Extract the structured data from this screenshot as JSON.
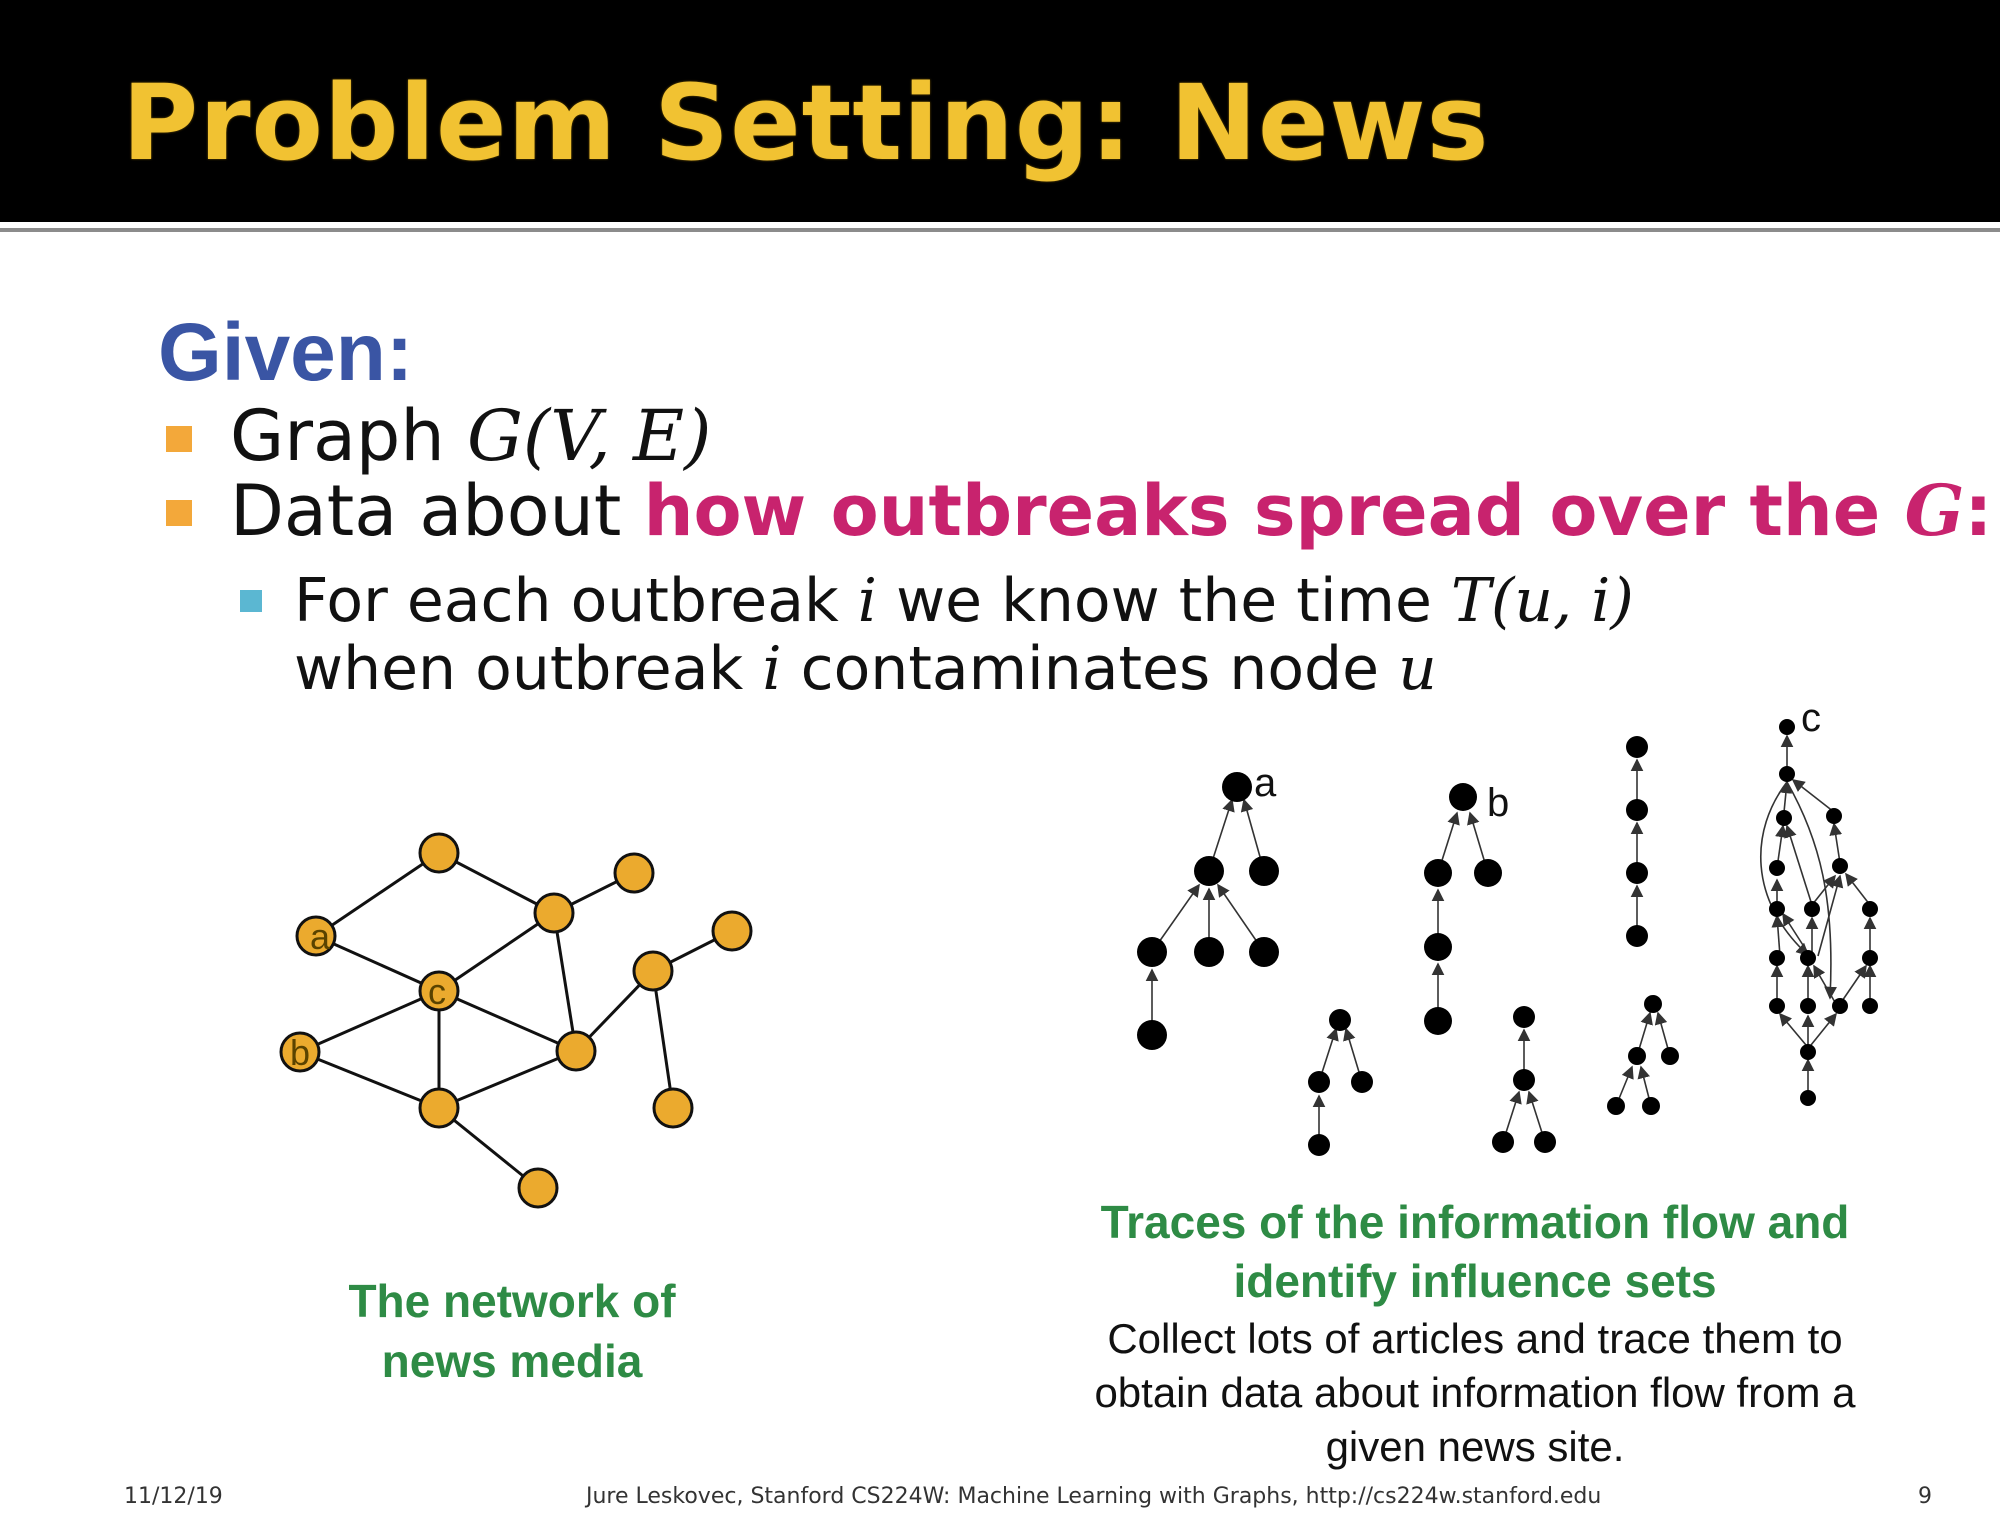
{
  "slide": {
    "title": "Problem Setting: News",
    "given_label": "Given:",
    "bullets": [
      {
        "prefix": "Graph ",
        "math": "G(V, E)"
      },
      {
        "prefix": "Data about ",
        "highlight": "how outbreaks spread over the ",
        "highlight_math": "G",
        "suffix": ":"
      }
    ],
    "sub_bullet": {
      "part1": "For each outbreak ",
      "math_i": "i",
      "part2": " we know the time ",
      "math_T": "T(u, i)",
      "line2_part1": "when outbreak ",
      "line2_math_i": "i",
      "line2_part2": " contaminates node ",
      "line2_math_u": "u"
    },
    "left_caption": [
      "The network of",
      "news media"
    ],
    "right_caption_title": [
      "Traces of the information flow and",
      "identify influence sets"
    ],
    "right_caption_body": [
      "Collect lots of articles and trace them to",
      "obtain data about information flow from a",
      "given news site."
    ],
    "footer": {
      "date": "11/12/19",
      "credit": "Jure Leskovec, Stanford CS224W: Machine Learning with Graphs, http://cs224w.stanford.edu",
      "page": "9"
    }
  },
  "network_labels": {
    "a": "a",
    "b": "b",
    "c": "c"
  },
  "trace_labels": {
    "a": "a",
    "b": "b",
    "c": "c"
  },
  "colors": {
    "title": "#f1c232",
    "title_band": "#000000",
    "given": "#3a55a4",
    "highlight": "#c8236e",
    "bullet_orange": "#f3a83a",
    "bullet_blue": "#5bb7d2",
    "caption_green": "#2e8b45",
    "network_node": "#ebaa2e"
  }
}
